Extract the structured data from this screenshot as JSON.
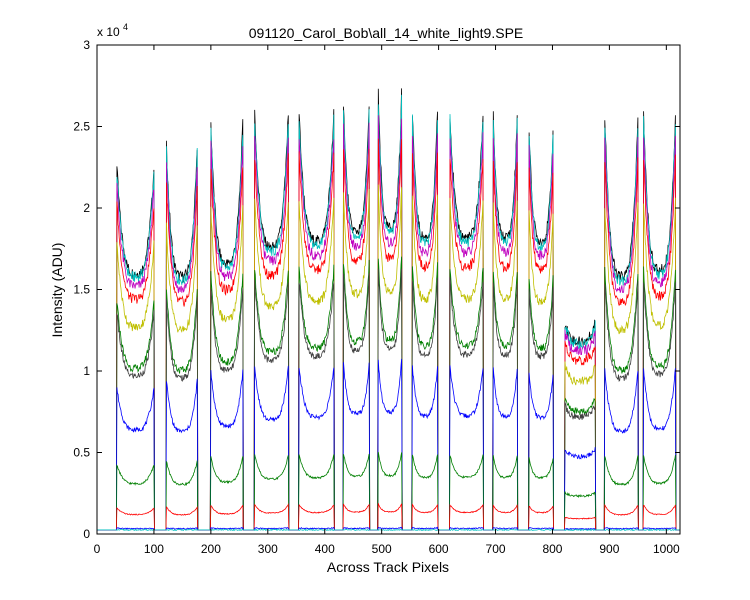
{
  "chart_data": {
    "type": "line",
    "title": "091120_Carol_Bob\\all_14_white_light9.SPE",
    "xlabel": "Across Track Pixels",
    "ylabel": "Intensity (ADU)",
    "y_exponent_base": "x 10",
    "y_exponent_power": "4",
    "xlim": [
      0,
      1024
    ],
    "ylim": [
      0,
      30000
    ],
    "x_ticks": [
      0,
      100,
      200,
      300,
      400,
      500,
      600,
      700,
      800,
      900,
      1000
    ],
    "y_ticks": [
      0,
      5000,
      10000,
      15000,
      20000,
      25000,
      30000
    ],
    "y_tick_labels": [
      "0",
      "0.5",
      "1",
      "1.5",
      "2",
      "2.5",
      "3"
    ],
    "grid": false,
    "baseline": 250,
    "spike_x": [
      32,
      103,
      120,
      178,
      198,
      258,
      275,
      338,
      353,
      418,
      431,
      480,
      492,
      537,
      552,
      600,
      618,
      680,
      694,
      740,
      757,
      803,
      952,
      958,
      1018
    ],
    "pattern": {
      "segments": [
        [
          35,
          100
        ],
        [
          122,
          176
        ],
        [
          200,
          256
        ],
        [
          277,
          336
        ],
        [
          355,
          416
        ],
        [
          433,
          478
        ],
        [
          494,
          535
        ],
        [
          554,
          598
        ],
        [
          620,
          678
        ],
        [
          696,
          738
        ],
        [
          759,
          801
        ],
        [
          822,
          875
        ],
        [
          892,
          950
        ],
        [
          960,
          1016
        ]
      ],
      "segment_edge_heights": [
        22500,
        23800,
        25200,
        25800,
        25800,
        26400,
        27000,
        26000,
        25800,
        25600,
        24800,
        13000,
        25500,
        25800
      ],
      "segment_min_heights": [
        16000,
        15800,
        16600,
        17600,
        18000,
        18600,
        18800,
        18200,
        18200,
        18200,
        18000,
        11800,
        15800,
        16200
      ]
    },
    "series": [
      {
        "color": "#000000",
        "scale": 1.0
      },
      {
        "color": "#00bfbf",
        "scale": 0.985
      },
      {
        "color": "#bf00bf",
        "scale": 0.95
      },
      {
        "color": "#ff0000",
        "scale": 0.9
      },
      {
        "color": "#bfbf00",
        "scale": 0.79
      },
      {
        "color": "#007f00",
        "scale": 0.63
      },
      {
        "color": "#404040",
        "scale": 0.6
      },
      {
        "color": "#0000ff",
        "scale": 0.39
      },
      {
        "color": "#007f00",
        "scale": 0.18
      },
      {
        "color": "#ff0000",
        "scale": 0.06
      },
      {
        "color": "#0000ff",
        "scale": 0.005
      },
      {
        "color": "#00bfbf",
        "scale": 0.0
      }
    ]
  }
}
